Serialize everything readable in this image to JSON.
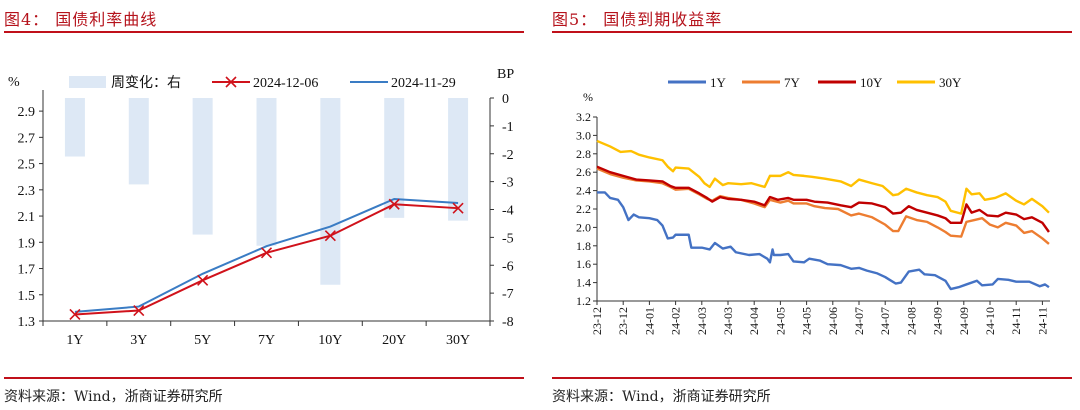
{
  "figures": [
    {
      "title": "图4：  国债利率曲线",
      "source": "资料来源：Wind，浙商证券研究所"
    },
    {
      "title": "图5：  国债到期收益率",
      "source": "资料来源：Wind，浙商证券研究所"
    }
  ],
  "chart_data": [
    {
      "type": "bar+line",
      "title": "国债利率曲线",
      "categories": [
        "1Y",
        "3Y",
        "5Y",
        "7Y",
        "10Y",
        "20Y",
        "30Y"
      ],
      "ylabel_left": "%",
      "ylabel_right": "BP",
      "ylim_left": [
        1.3,
        3.0
      ],
      "yticks_left": [
        "1.3",
        "1.5",
        "1.7",
        "1.9",
        "2.1",
        "2.3",
        "2.5",
        "2.7",
        "2.9"
      ],
      "ylim_right": [
        -8,
        0
      ],
      "yticks_right": [
        "0",
        "-1",
        "-2",
        "-3",
        "-4",
        "-5",
        "-6",
        "-7",
        "-8"
      ],
      "series": [
        {
          "name": "周变化：右",
          "type": "bar",
          "axis": "right",
          "color": "#dde8f5",
          "values": [
            -2.1,
            -3.1,
            -4.9,
            -5.3,
            -6.7,
            -4.3,
            -4.4
          ]
        },
        {
          "name": "2024-12-06",
          "type": "line",
          "marker": "x",
          "color": "#d0121b",
          "values": [
            1.35,
            1.38,
            1.61,
            1.82,
            1.95,
            2.19,
            2.16
          ]
        },
        {
          "name": "2024-11-29",
          "type": "line",
          "color": "#3a7cc4",
          "values": [
            1.37,
            1.41,
            1.66,
            1.87,
            2.02,
            2.23,
            2.2
          ]
        }
      ],
      "legend": "top"
    },
    {
      "type": "line",
      "title": "国债到期收益率",
      "ylabel": "%",
      "ylim": [
        1.2,
        3.2
      ],
      "yticks": [
        "1.2",
        "1.4",
        "1.6",
        "1.8",
        "2.0",
        "2.2",
        "2.4",
        "2.6",
        "2.8",
        "3.0",
        "3.2"
      ],
      "xticks": [
        "23-12",
        "23-12",
        "24-01",
        "24-02",
        "24-03",
        "24-03",
        "24-04",
        "24-05",
        "24-05",
        "24-06",
        "24-07",
        "24-07",
        "24-08",
        "24-09",
        "24-09",
        "24-10",
        "24-11",
        "24-11"
      ],
      "x_note": "x values are positions in tick-label index units",
      "series": [
        {
          "name": "1Y",
          "color": "#4472c4",
          "points": [
            [
              0,
              2.38
            ],
            [
              0.3,
              2.38
            ],
            [
              0.5,
              2.32
            ],
            [
              0.8,
              2.3
            ],
            [
              1,
              2.22
            ],
            [
              1.2,
              2.08
            ],
            [
              1.4,
              2.14
            ],
            [
              1.6,
              2.11
            ],
            [
              2,
              2.1
            ],
            [
              2.3,
              2.08
            ],
            [
              2.5,
              2.02
            ],
            [
              2.7,
              1.88
            ],
            [
              2.9,
              1.89
            ],
            [
              3,
              1.92
            ],
            [
              3.5,
              1.92
            ],
            [
              3.6,
              1.78
            ],
            [
              4,
              1.78
            ],
            [
              4.3,
              1.76
            ],
            [
              4.5,
              1.83
            ],
            [
              4.8,
              1.77
            ],
            [
              5.1,
              1.79
            ],
            [
              5.3,
              1.73
            ],
            [
              5.8,
              1.7
            ],
            [
              6.2,
              1.71
            ],
            [
              6.5,
              1.66
            ],
            [
              6.6,
              1.62
            ],
            [
              6.7,
              1.76
            ],
            [
              6.75,
              1.7
            ],
            [
              7,
              1.7
            ],
            [
              7.3,
              1.71
            ],
            [
              7.5,
              1.63
            ],
            [
              7.9,
              1.62
            ],
            [
              8.1,
              1.66
            ],
            [
              8.5,
              1.64
            ],
            [
              8.8,
              1.6
            ],
            [
              9.3,
              1.59
            ],
            [
              9.7,
              1.55
            ],
            [
              10,
              1.56
            ],
            [
              10.3,
              1.53
            ],
            [
              10.7,
              1.5
            ],
            [
              11,
              1.46
            ],
            [
              11.4,
              1.39
            ],
            [
              11.6,
              1.4
            ],
            [
              11.9,
              1.52
            ],
            [
              12.3,
              1.54
            ],
            [
              12.5,
              1.49
            ],
            [
              12.9,
              1.48
            ],
            [
              13.3,
              1.42
            ],
            [
              13.5,
              1.33
            ],
            [
              13.8,
              1.35
            ],
            [
              14.1,
              1.38
            ],
            [
              14.5,
              1.42
            ],
            [
              14.7,
              1.37
            ],
            [
              15.1,
              1.38
            ],
            [
              15.3,
              1.44
            ],
            [
              15.7,
              1.43
            ],
            [
              16,
              1.41
            ],
            [
              16.5,
              1.41
            ],
            [
              16.9,
              1.36
            ],
            [
              17.1,
              1.38
            ],
            [
              17.25,
              1.35
            ]
          ]
        },
        {
          "name": "7Y",
          "color": "#ed7d31",
          "points": [
            [
              0,
              2.64
            ],
            [
              0.5,
              2.58
            ],
            [
              1,
              2.54
            ],
            [
              1.5,
              2.51
            ],
            [
              2,
              2.5
            ],
            [
              2.5,
              2.48
            ],
            [
              2.8,
              2.44
            ],
            [
              3,
              2.41
            ],
            [
              3.5,
              2.42
            ],
            [
              3.9,
              2.36
            ],
            [
              4.2,
              2.31
            ],
            [
              4.4,
              2.29
            ],
            [
              4.7,
              2.34
            ],
            [
              5,
              2.32
            ],
            [
              5.5,
              2.3
            ],
            [
              6,
              2.26
            ],
            [
              6.4,
              2.22
            ],
            [
              6.6,
              2.3
            ],
            [
              7,
              2.27
            ],
            [
              7.3,
              2.29
            ],
            [
              7.5,
              2.26
            ],
            [
              8,
              2.26
            ],
            [
              8.3,
              2.23
            ],
            [
              8.7,
              2.21
            ],
            [
              9.2,
              2.2
            ],
            [
              9.7,
              2.13
            ],
            [
              10,
              2.15
            ],
            [
              10.5,
              2.11
            ],
            [
              11,
              2.03
            ],
            [
              11.3,
              1.96
            ],
            [
              11.5,
              1.96
            ],
            [
              11.8,
              2.12
            ],
            [
              12.2,
              2.08
            ],
            [
              12.6,
              2.06
            ],
            [
              13,
              2
            ],
            [
              13.3,
              1.95
            ],
            [
              13.5,
              1.91
            ],
            [
              13.9,
              1.9
            ],
            [
              14.1,
              2.06
            ],
            [
              14.4,
              2.08
            ],
            [
              14.7,
              2.1
            ],
            [
              15,
              2.03
            ],
            [
              15.3,
              2
            ],
            [
              15.6,
              2.05
            ],
            [
              16,
              2.02
            ],
            [
              16.3,
              1.94
            ],
            [
              16.6,
              1.96
            ],
            [
              17,
              1.88
            ],
            [
              17.25,
              1.82
            ]
          ]
        },
        {
          "name": "10Y",
          "color": "#c00000",
          "points": [
            [
              0,
              2.66
            ],
            [
              0.5,
              2.6
            ],
            [
              1,
              2.56
            ],
            [
              1.5,
              2.52
            ],
            [
              2,
              2.51
            ],
            [
              2.5,
              2.5
            ],
            [
              2.8,
              2.45
            ],
            [
              3,
              2.43
            ],
            [
              3.5,
              2.43
            ],
            [
              3.9,
              2.37
            ],
            [
              4.2,
              2.32
            ],
            [
              4.4,
              2.28
            ],
            [
              4.7,
              2.33
            ],
            [
              5,
              2.31
            ],
            [
              5.5,
              2.3
            ],
            [
              6,
              2.28
            ],
            [
              6.4,
              2.24
            ],
            [
              6.6,
              2.33
            ],
            [
              6.9,
              2.3
            ],
            [
              7.3,
              2.32
            ],
            [
              7.5,
              2.3
            ],
            [
              8,
              2.3
            ],
            [
              8.3,
              2.28
            ],
            [
              8.8,
              2.27
            ],
            [
              9.3,
              2.24
            ],
            [
              9.7,
              2.22
            ],
            [
              10,
              2.27
            ],
            [
              10.5,
              2.26
            ],
            [
              11,
              2.22
            ],
            [
              11.3,
              2.15
            ],
            [
              11.6,
              2.16
            ],
            [
              11.9,
              2.23
            ],
            [
              12.2,
              2.19
            ],
            [
              12.6,
              2.16
            ],
            [
              13,
              2.13
            ],
            [
              13.3,
              2.1
            ],
            [
              13.5,
              2.05
            ],
            [
              13.9,
              2.05
            ],
            [
              14.1,
              2.25
            ],
            [
              14.3,
              2.16
            ],
            [
              14.6,
              2.19
            ],
            [
              14.9,
              2.13
            ],
            [
              15.3,
              2.12
            ],
            [
              15.6,
              2.16
            ],
            [
              16,
              2.14
            ],
            [
              16.3,
              2.09
            ],
            [
              16.6,
              2.11
            ],
            [
              17,
              2.05
            ],
            [
              17.25,
              1.95
            ]
          ]
        },
        {
          "name": "30Y",
          "color": "#ffc000",
          "points": [
            [
              0,
              2.94
            ],
            [
              0.5,
              2.88
            ],
            [
              0.9,
              2.82
            ],
            [
              1.3,
              2.83
            ],
            [
              1.6,
              2.79
            ],
            [
              2,
              2.76
            ],
            [
              2.5,
              2.73
            ],
            [
              2.7,
              2.66
            ],
            [
              2.9,
              2.61
            ],
            [
              3,
              2.65
            ],
            [
              3.5,
              2.64
            ],
            [
              3.9,
              2.55
            ],
            [
              4.1,
              2.48
            ],
            [
              4.3,
              2.44
            ],
            [
              4.5,
              2.53
            ],
            [
              4.8,
              2.46
            ],
            [
              5,
              2.48
            ],
            [
              5.5,
              2.47
            ],
            [
              5.9,
              2.48
            ],
            [
              6.4,
              2.44
            ],
            [
              6.6,
              2.56
            ],
            [
              7,
              2.56
            ],
            [
              7.3,
              2.6
            ],
            [
              7.5,
              2.57
            ],
            [
              7.9,
              2.56
            ],
            [
              8.2,
              2.55
            ],
            [
              8.7,
              2.53
            ],
            [
              9.3,
              2.5
            ],
            [
              9.7,
              2.45
            ],
            [
              10,
              2.52
            ],
            [
              10.5,
              2.48
            ],
            [
              10.9,
              2.45
            ],
            [
              11.3,
              2.35
            ],
            [
              11.5,
              2.36
            ],
            [
              11.8,
              2.42
            ],
            [
              12.2,
              2.38
            ],
            [
              12.6,
              2.35
            ],
            [
              13,
              2.33
            ],
            [
              13.3,
              2.28
            ],
            [
              13.5,
              2.18
            ],
            [
              13.9,
              2.15
            ],
            [
              14.1,
              2.42
            ],
            [
              14.3,
              2.36
            ],
            [
              14.6,
              2.37
            ],
            [
              14.8,
              2.3
            ],
            [
              15.2,
              2.32
            ],
            [
              15.6,
              2.37
            ],
            [
              16,
              2.29
            ],
            [
              16.3,
              2.25
            ],
            [
              16.6,
              2.31
            ],
            [
              17,
              2.23
            ],
            [
              17.25,
              2.16
            ]
          ]
        }
      ],
      "legend": "top"
    }
  ]
}
